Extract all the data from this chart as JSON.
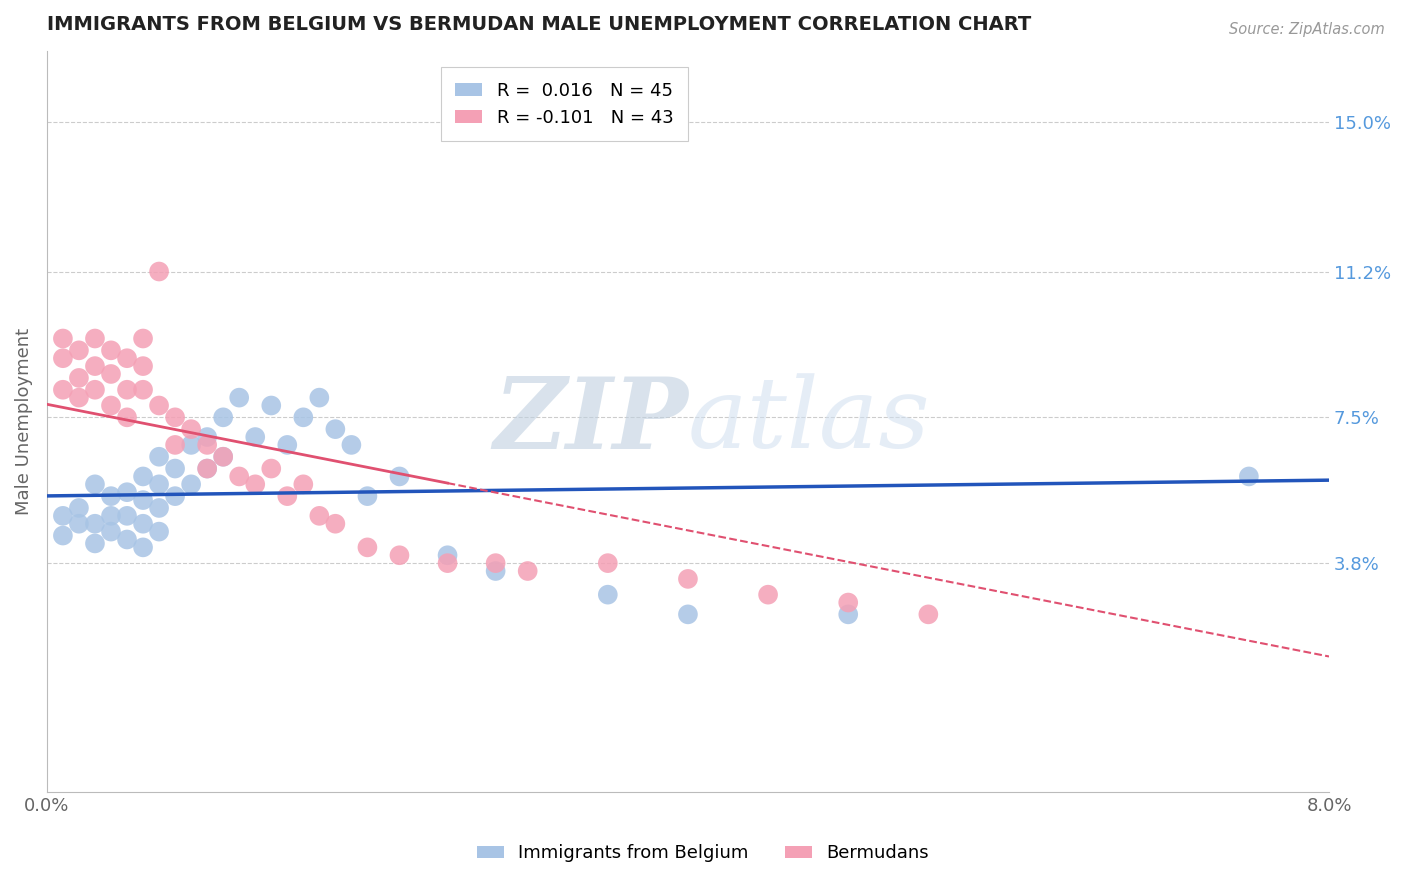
{
  "title": "IMMIGRANTS FROM BELGIUM VS BERMUDAN MALE UNEMPLOYMENT CORRELATION CHART",
  "source": "Source: ZipAtlas.com",
  "ylabel": "Male Unemployment",
  "ytick_labels": [
    "3.8%",
    "7.5%",
    "11.2%",
    "15.0%"
  ],
  "ytick_values": [
    0.038,
    0.075,
    0.112,
    0.15
  ],
  "xlim": [
    0.0,
    0.08
  ],
  "ylim": [
    -0.02,
    0.168
  ],
  "watermark_zip": "ZIP",
  "watermark_atlas": "atlas",
  "blue_scatter_color": "#a8c4e5",
  "pink_scatter_color": "#f4a0b5",
  "blue_line_color": "#2255bb",
  "pink_line_color": "#e05070",
  "background_color": "#ffffff",
  "grid_color": "#cccccc",
  "title_color": "#222222",
  "right_axis_label_color": "#5599dd",
  "watermark_color_zip": "#b8cfe8",
  "watermark_color_atlas": "#c8d8ee",
  "legend_entries": [
    {
      "label": "R =  0.016   N = 45",
      "color": "#a8c4e5"
    },
    {
      "label": "R = -0.101   N = 43",
      "color": "#f4a0b5"
    }
  ],
  "blue_scatter_x": [
    0.001,
    0.001,
    0.002,
    0.002,
    0.003,
    0.003,
    0.003,
    0.004,
    0.004,
    0.004,
    0.005,
    0.005,
    0.005,
    0.006,
    0.006,
    0.006,
    0.006,
    0.007,
    0.007,
    0.007,
    0.007,
    0.008,
    0.008,
    0.009,
    0.009,
    0.01,
    0.01,
    0.011,
    0.011,
    0.012,
    0.013,
    0.014,
    0.015,
    0.016,
    0.017,
    0.018,
    0.019,
    0.02,
    0.022,
    0.025,
    0.028,
    0.035,
    0.04,
    0.05,
    0.075
  ],
  "blue_scatter_y": [
    0.05,
    0.045,
    0.052,
    0.048,
    0.058,
    0.048,
    0.043,
    0.055,
    0.05,
    0.046,
    0.056,
    0.05,
    0.044,
    0.06,
    0.054,
    0.048,
    0.042,
    0.065,
    0.058,
    0.052,
    0.046,
    0.062,
    0.055,
    0.068,
    0.058,
    0.07,
    0.062,
    0.075,
    0.065,
    0.08,
    0.07,
    0.078,
    0.068,
    0.075,
    0.08,
    0.072,
    0.068,
    0.055,
    0.06,
    0.04,
    0.036,
    0.03,
    0.025,
    0.025,
    0.06
  ],
  "pink_scatter_x": [
    0.001,
    0.001,
    0.001,
    0.002,
    0.002,
    0.002,
    0.003,
    0.003,
    0.003,
    0.004,
    0.004,
    0.004,
    0.005,
    0.005,
    0.005,
    0.006,
    0.006,
    0.006,
    0.007,
    0.007,
    0.008,
    0.008,
    0.009,
    0.01,
    0.01,
    0.011,
    0.012,
    0.013,
    0.014,
    0.015,
    0.016,
    0.017,
    0.018,
    0.02,
    0.022,
    0.025,
    0.028,
    0.03,
    0.035,
    0.04,
    0.045,
    0.05,
    0.055
  ],
  "pink_scatter_y": [
    0.09,
    0.082,
    0.095,
    0.085,
    0.092,
    0.08,
    0.088,
    0.082,
    0.095,
    0.086,
    0.078,
    0.092,
    0.082,
    0.075,
    0.09,
    0.088,
    0.082,
    0.095,
    0.112,
    0.078,
    0.075,
    0.068,
    0.072,
    0.068,
    0.062,
    0.065,
    0.06,
    0.058,
    0.062,
    0.055,
    0.058,
    0.05,
    0.048,
    0.042,
    0.04,
    0.038,
    0.038,
    0.036,
    0.038,
    0.034,
    0.03,
    0.028,
    0.025
  ]
}
